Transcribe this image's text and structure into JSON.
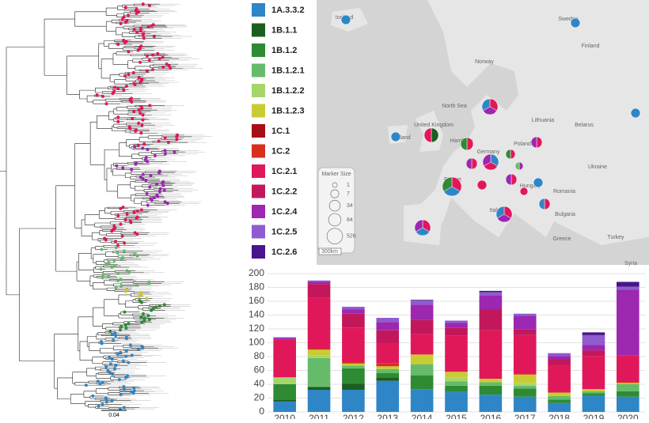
{
  "chart_data": {
    "type": "stacked-bar",
    "categories": [
      "2010",
      "2011",
      "2012",
      "2013",
      "2014",
      "2015",
      "2016",
      "2017",
      "2018",
      "2019",
      "2020"
    ],
    "ylim": [
      0,
      200
    ],
    "yticks": [
      0,
      20,
      40,
      60,
      80,
      100,
      120,
      140,
      160,
      180,
      200
    ],
    "grid": true,
    "series": [
      {
        "name": "1A.3.3.2",
        "color": "#2f86c6",
        "values": [
          15,
          32,
          32,
          45,
          33,
          29,
          25,
          22,
          13,
          23,
          22
        ]
      },
      {
        "name": "1B.1.1",
        "color": "#1b5e20",
        "values": [
          3,
          4,
          9,
          5,
          0,
          0,
          0,
          0,
          0,
          0,
          0
        ]
      },
      {
        "name": "1B.1.2",
        "color": "#2e8b33",
        "values": [
          22,
          0,
          22,
          6,
          20,
          9,
          13,
          12,
          5,
          4,
          8
        ]
      },
      {
        "name": "1B.1.2.1",
        "color": "#66bb6a",
        "values": [
          0,
          42,
          4,
          6,
          16,
          6,
          5,
          4,
          5,
          3,
          10
        ]
      },
      {
        "name": "1B.1.2.2",
        "color": "#a5d66a",
        "values": [
          10,
          4,
          0,
          0,
          0,
          6,
          0,
          4,
          0,
          0,
          0
        ]
      },
      {
        "name": "1B.1.2.3",
        "color": "#c8cc32",
        "values": [
          0,
          8,
          3,
          4,
          14,
          8,
          5,
          12,
          5,
          3,
          2
        ]
      },
      {
        "name": "1C.1",
        "color": "#a50f15",
        "values": [
          0,
          0,
          0,
          0,
          0,
          0,
          0,
          0,
          0,
          0,
          0
        ]
      },
      {
        "name": "1C.2",
        "color": "#d7301f",
        "values": [
          0,
          2,
          2,
          4,
          0,
          0,
          0,
          2,
          0,
          0,
          2
        ]
      },
      {
        "name": "1C.2.1",
        "color": "#e0185a",
        "values": [
          55,
          73,
          50,
          30,
          30,
          52,
          70,
          55,
          40,
          48,
          38
        ]
      },
      {
        "name": "1C.2.2",
        "color": "#c2185b",
        "values": [
          0,
          20,
          20,
          18,
          20,
          12,
          30,
          8,
          8,
          8,
          0
        ]
      },
      {
        "name": "1C.2.4",
        "color": "#9c27b0",
        "values": [
          2,
          3,
          6,
          12,
          22,
          7,
          20,
          20,
          5,
          8,
          95
        ]
      },
      {
        "name": "1C.2.5",
        "color": "#8e5ccf",
        "values": [
          1,
          2,
          4,
          6,
          6,
          3,
          5,
          3,
          4,
          14,
          4
        ]
      },
      {
        "name": "1C.2.6",
        "color": "#4a148c",
        "values": [
          0,
          0,
          0,
          0,
          1,
          0,
          2,
          0,
          0,
          4,
          7
        ]
      }
    ]
  },
  "tree": {
    "scale_label": "0.04"
  },
  "map": {
    "labels": [
      "Iceland",
      "Sweden",
      "Finland",
      "Norway",
      "North Sea",
      "United Kingdom",
      "Ireland",
      "Hamburg",
      "Lithuania",
      "Belarus",
      "Germany",
      "Poland",
      "Ukraine",
      "France",
      "Hungary",
      "Romania",
      "Bulgaria",
      "Italy",
      "Greece",
      "Turkey",
      "Syria"
    ],
    "marker_size": {
      "title": "Marker Size",
      "values": [
        1,
        7,
        34,
        84,
        526
      ]
    },
    "scale_label": "300km"
  }
}
